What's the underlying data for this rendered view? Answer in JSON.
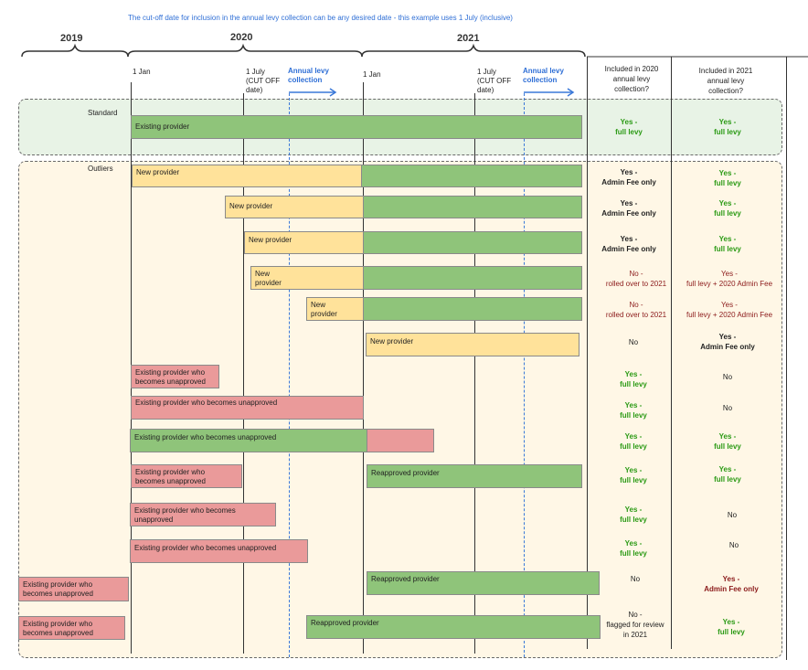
{
  "title": "The cut-off date for inclusion in the annual levy collection can be any desired date - this example uses 1 July (inclusive)",
  "colors": {
    "green": "#8fc47a",
    "yellow": "#ffe29a",
    "red": "#ea9a9a",
    "standard_bg": "#e8f3e6",
    "outlier_bg": "#fff7e6",
    "accent": "#2f6fd6"
  },
  "years": [
    "2019",
    "2020",
    "2021"
  ],
  "timeline": {
    "jan_2020": "1 Jan",
    "july_2020": [
      "1 July",
      "(CUT OFF",
      "date)"
    ],
    "collection_2020": [
      "Annual levy",
      "collection"
    ],
    "jan_2021": "1 Jan",
    "july_2021": [
      "1 July",
      "(CUT OFF",
      "date)"
    ],
    "collection_2021": [
      "Annual levy",
      "collection"
    ]
  },
  "columns": {
    "col_2020": [
      "Included in 2020",
      "annual levy",
      "collection?"
    ],
    "col_2021": [
      "Included in 2021",
      "annual levy",
      "collection?"
    ]
  },
  "sections": {
    "standard": "Standard",
    "outliers": "Outliers"
  },
  "rows": [
    {
      "bars": [
        "Existing provider"
      ],
      "r2020": [
        "Yes -",
        "full levy"
      ],
      "r2021": [
        "Yes -",
        "full levy"
      ]
    },
    {
      "bars": [
        "New provider"
      ],
      "r2020": [
        "Yes -",
        "Admin Fee only"
      ],
      "r2021": [
        "Yes -",
        "full levy"
      ]
    },
    {
      "bars": [
        "New provider"
      ],
      "r2020": [
        "Yes -",
        "Admin Fee only"
      ],
      "r2021": [
        "Yes -",
        "full levy"
      ]
    },
    {
      "bars": [
        "New provider"
      ],
      "r2020": [
        "Yes -",
        "Admin Fee only"
      ],
      "r2021": [
        "Yes -",
        "full levy"
      ]
    },
    {
      "bars": [
        "New provider"
      ],
      "r2020": [
        "No -",
        "rolled over to 2021"
      ],
      "r2021": [
        "Yes -",
        "full levy + 2020 Admin Fee"
      ]
    },
    {
      "bars": [
        "New provider"
      ],
      "r2020": [
        "No -",
        "rolled over to 2021"
      ],
      "r2021": [
        "Yes -",
        "full levy + 2020 Admin Fee"
      ]
    },
    {
      "bars": [
        "New provider"
      ],
      "r2020": [
        "No"
      ],
      "r2021": [
        "Yes -",
        "Admin Fee only"
      ]
    },
    {
      "bars": [
        "Existing provider who becomes unapproved"
      ],
      "r2020": [
        "Yes -",
        "full levy"
      ],
      "r2021": [
        "No"
      ]
    },
    {
      "bars": [
        "Existing provider who becomes unapproved"
      ],
      "r2020": [
        "Yes -",
        "full levy"
      ],
      "r2021": [
        "No"
      ]
    },
    {
      "bars": [
        "Existing provider who becomes unapproved"
      ],
      "r2020": [
        "Yes -",
        "full levy"
      ],
      "r2021": [
        "Yes -",
        "full levy"
      ]
    },
    {
      "bars": [
        "Existing provider who becomes unapproved",
        "Reapproved provider"
      ],
      "r2020": [
        "Yes -",
        "full levy"
      ],
      "r2021": [
        "Yes -",
        "full levy"
      ]
    },
    {
      "bars": [
        "Existing provider who becomes unapproved"
      ],
      "r2020": [
        "Yes -",
        "full levy"
      ],
      "r2021": [
        "No"
      ]
    },
    {
      "bars": [
        "Existing provider who becomes unapproved"
      ],
      "r2020": [
        "Yes -",
        "full levy"
      ],
      "r2021": [
        "No"
      ]
    },
    {
      "bars": [
        "Existing provider who becomes unapproved",
        "Reapproved provider"
      ],
      "r2020": [
        "No"
      ],
      "r2021": [
        "Yes -",
        "Admin Fee only"
      ]
    },
    {
      "bars": [
        "Existing provider who becomes unapproved",
        "Reapproved provider"
      ],
      "r2020": [
        "No -",
        "flagged for review",
        "in 2021"
      ],
      "r2021": [
        "Yes -",
        "full levy"
      ]
    }
  ]
}
